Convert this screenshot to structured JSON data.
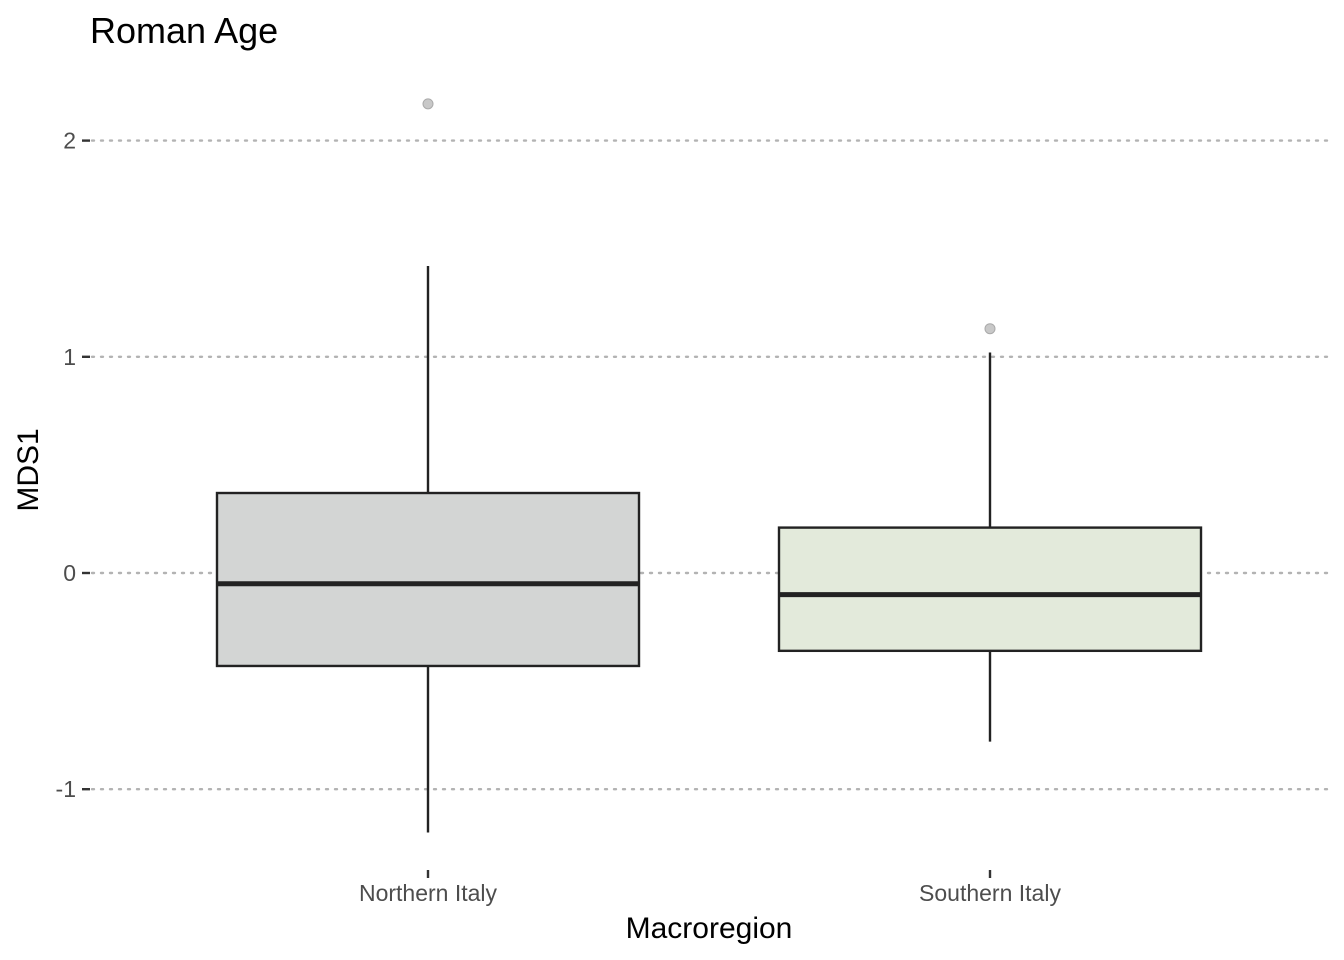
{
  "chart_data": {
    "type": "boxplot",
    "title": "Roman Age",
    "xlabel": "Macroregion",
    "ylabel": "MDS1",
    "ylim": [
      -1.38,
      2.5
    ],
    "yticks": [
      -1,
      0,
      1,
      2
    ],
    "ytick_labels": [
      "-1",
      "0",
      "1",
      "2"
    ],
    "grid": "horizontal dotted",
    "categories": [
      "Northern Italy",
      "Southern Italy"
    ],
    "boxes": [
      {
        "name": "Northern Italy",
        "whisker_low": -1.2,
        "q1": -0.43,
        "median": -0.05,
        "q3": 0.37,
        "whisker_high": 1.42,
        "outliers": [
          2.17
        ],
        "fill": "#d3d5d4"
      },
      {
        "name": "Southern Italy",
        "whisker_low": -0.78,
        "q1": -0.36,
        "median": -0.1,
        "q3": 0.21,
        "whisker_high": 1.02,
        "outliers": [
          1.13
        ],
        "fill": "#e3eadb"
      }
    ]
  }
}
